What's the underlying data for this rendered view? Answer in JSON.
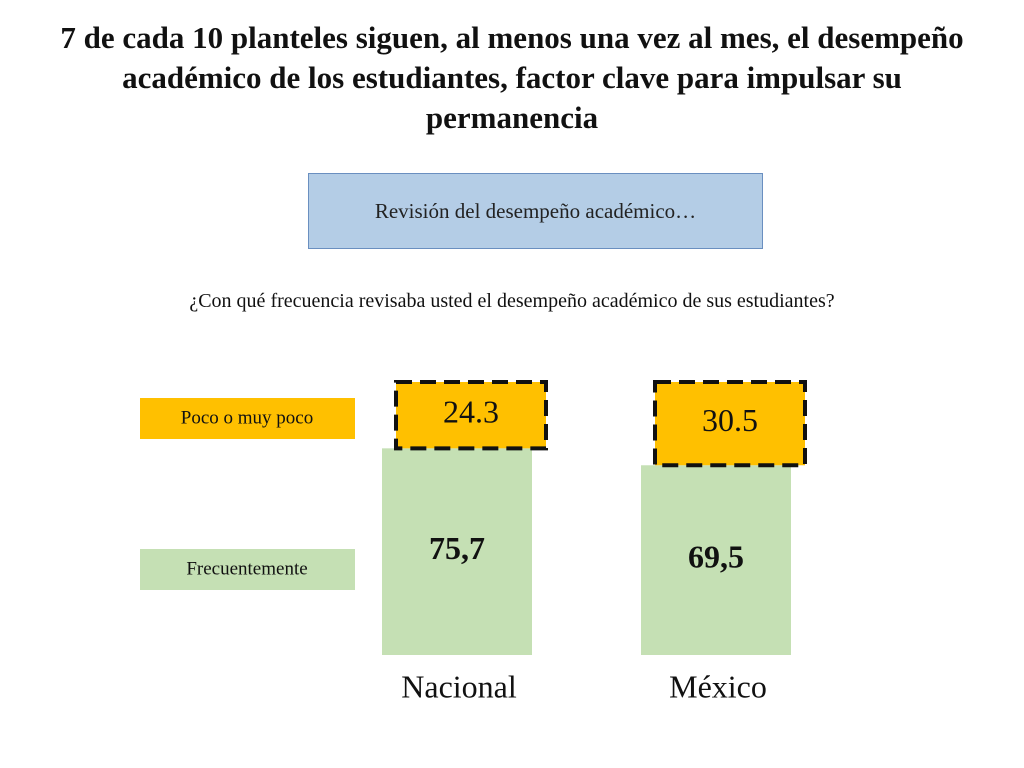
{
  "title": "7 de cada 10 planteles siguen, al menos una vez al mes, el desempeño académico de los estudiantes, factor clave para impulsar su permanencia",
  "subtitle": "Revisión del desempeño académico…",
  "question": "¿Con qué frecuencia revisaba usted el desempeño académico de sus estudiantes?",
  "chart_data": {
    "type": "bar",
    "stacked": true,
    "categories": [
      "Nacional",
      "México"
    ],
    "series": [
      {
        "name": "Frecuentemente",
        "color": "#c5e0b4",
        "values": [
          75.7,
          69.5
        ],
        "value_labels": [
          "75,7",
          "69,5"
        ]
      },
      {
        "name": "Poco o muy poco",
        "color": "#ffc000",
        "values": [
          24.3,
          30.5
        ]
      }
    ]
  }
}
